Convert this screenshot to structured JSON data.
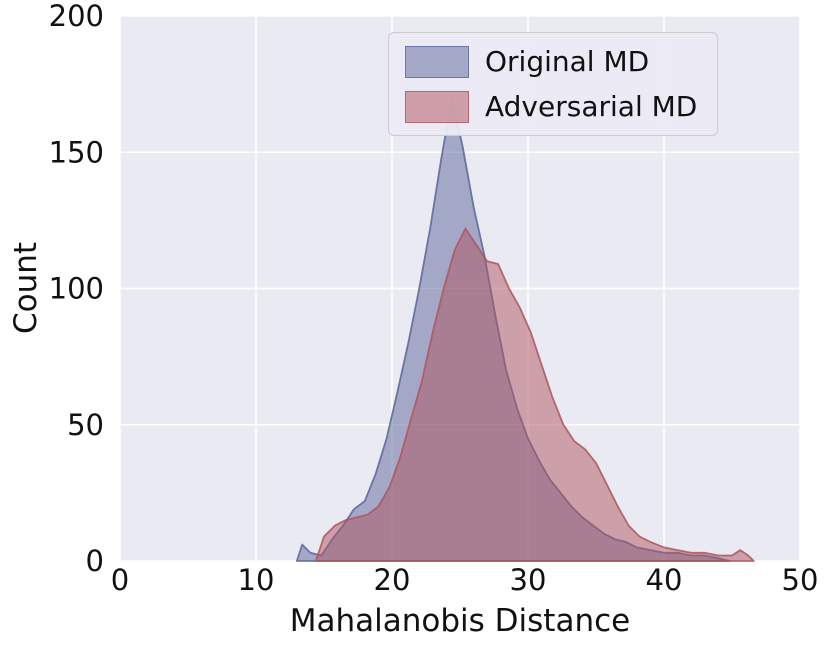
{
  "figure": {
    "background": "#ffffff",
    "plot_background": "#eaeaf2",
    "grid_color": "#ffffff",
    "tick_color": "#111111"
  },
  "chart_data": {
    "type": "area",
    "title": "",
    "xlabel": "Mahalanobis Distance",
    "ylabel": "Count",
    "xlim": [
      0,
      50
    ],
    "ylim": [
      0,
      200
    ],
    "xticks": [
      0,
      10,
      20,
      30,
      40,
      50
    ],
    "yticks": [
      0,
      50,
      100,
      150,
      200
    ],
    "grid": true,
    "legend_position": "upper right",
    "series": [
      {
        "name": "Original MD",
        "color": "#5a6699",
        "fill_opacity": 0.5,
        "points": [
          [
            13.0,
            0
          ],
          [
            13.4,
            6
          ],
          [
            14.0,
            3
          ],
          [
            14.8,
            2
          ],
          [
            15.6,
            8
          ],
          [
            16.4,
            13
          ],
          [
            17.2,
            19
          ],
          [
            18.0,
            22
          ],
          [
            18.8,
            32
          ],
          [
            19.6,
            45
          ],
          [
            20.4,
            62
          ],
          [
            21.2,
            80
          ],
          [
            22.0,
            100
          ],
          [
            22.8,
            122
          ],
          [
            23.6,
            147
          ],
          [
            24.4,
            170
          ],
          [
            25.2,
            152
          ],
          [
            26.0,
            130
          ],
          [
            26.8,
            112
          ],
          [
            27.6,
            90
          ],
          [
            28.4,
            70
          ],
          [
            29.2,
            56
          ],
          [
            30.0,
            45
          ],
          [
            30.8,
            37
          ],
          [
            31.6,
            30
          ],
          [
            32.4,
            25
          ],
          [
            33.2,
            20
          ],
          [
            34.0,
            16
          ],
          [
            34.8,
            13
          ],
          [
            35.6,
            10
          ],
          [
            36.4,
            8
          ],
          [
            37.2,
            7
          ],
          [
            38.0,
            5
          ],
          [
            39.0,
            4
          ],
          [
            40.0,
            3
          ],
          [
            41.0,
            3
          ],
          [
            42.0,
            2
          ],
          [
            43.0,
            2
          ],
          [
            44.0,
            1
          ],
          [
            44.8,
            0
          ]
        ]
      },
      {
        "name": "Adversarial MD",
        "color": "#b0545e",
        "fill_opacity": 0.5,
        "points": [
          [
            14.4,
            0
          ],
          [
            15.0,
            9
          ],
          [
            15.8,
            13
          ],
          [
            16.6,
            15
          ],
          [
            17.4,
            16
          ],
          [
            18.2,
            17
          ],
          [
            19.0,
            20
          ],
          [
            19.8,
            27
          ],
          [
            20.6,
            38
          ],
          [
            21.4,
            52
          ],
          [
            22.2,
            66
          ],
          [
            23.0,
            84
          ],
          [
            23.8,
            100
          ],
          [
            24.6,
            114
          ],
          [
            25.4,
            122
          ],
          [
            26.2,
            116
          ],
          [
            27.0,
            110
          ],
          [
            27.8,
            109
          ],
          [
            28.6,
            100
          ],
          [
            29.4,
            93
          ],
          [
            30.2,
            84
          ],
          [
            31.0,
            72
          ],
          [
            31.8,
            60
          ],
          [
            32.6,
            50
          ],
          [
            33.4,
            44
          ],
          [
            34.2,
            41
          ],
          [
            35.0,
            36
          ],
          [
            35.8,
            28
          ],
          [
            36.6,
            20
          ],
          [
            37.4,
            13
          ],
          [
            38.2,
            9
          ],
          [
            39.0,
            7
          ],
          [
            40.0,
            5
          ],
          [
            41.0,
            4
          ],
          [
            42.0,
            3
          ],
          [
            43.0,
            3
          ],
          [
            44.0,
            2
          ],
          [
            45.0,
            2
          ],
          [
            45.6,
            4
          ],
          [
            46.2,
            2
          ],
          [
            46.6,
            0
          ]
        ]
      }
    ]
  }
}
